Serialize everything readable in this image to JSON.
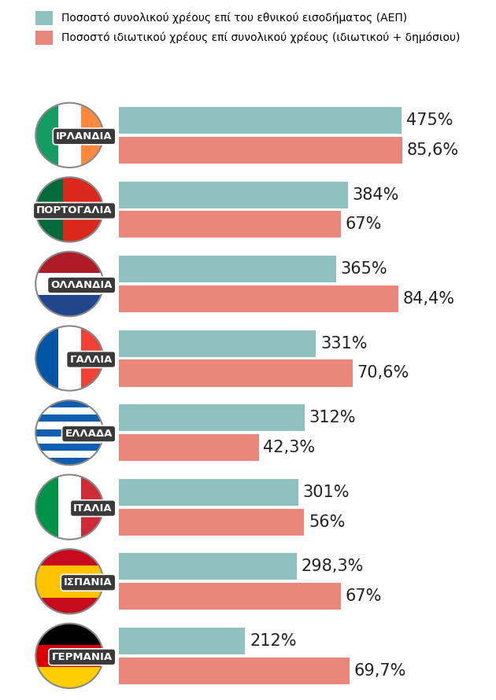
{
  "chart_data": {
    "type": "bar",
    "orientation": "horizontal",
    "categories": [
      "ΙΡΛΑΝΔΙΑ",
      "ΠΟΡΤΟΓΑΛΙΑ",
      "ΟΛΛΑΝΔΙΑ",
      "ΓΑΛΛΙΑ",
      "ΕΛΛΑΔΑ",
      "ΙΤΑΛΙΑ",
      "ΙΣΠΑΝΙΑ",
      "ΓΕΡΜΑΝΙΑ"
    ],
    "series": [
      {
        "name": "Ποσοστό συνολικού χρέους επί του εθνικού εισοδήματος (ΑΕΠ)",
        "color": "#8fc1bf",
        "values": [
          475,
          384,
          365,
          331,
          312,
          301,
          298.3,
          212
        ],
        "value_labels": [
          "475%",
          "384%",
          "365%",
          "331%",
          "312%",
          "301%",
          "298,3%",
          "212%"
        ]
      },
      {
        "name": "Ποσοστό ιδιωτικού χρέους επί συνολικού χρέους (ιδιωτικού + δημόσιου)",
        "color": "#e9877b",
        "axis": "x2",
        "values": [
          85.6,
          67,
          84.4,
          70.6,
          42.3,
          56,
          67,
          69.7
        ],
        "value_labels": [
          "85,6%",
          "67%",
          "84,4%",
          "70,6%",
          "42,3%",
          "56%",
          "67%",
          "69,7%"
        ]
      }
    ],
    "xlim": [
      0,
      500
    ],
    "x2lim": [
      0,
      90
    ],
    "data_labels": true,
    "grid": false,
    "legend": "upper center",
    "tick_labels": "y"
  }
}
